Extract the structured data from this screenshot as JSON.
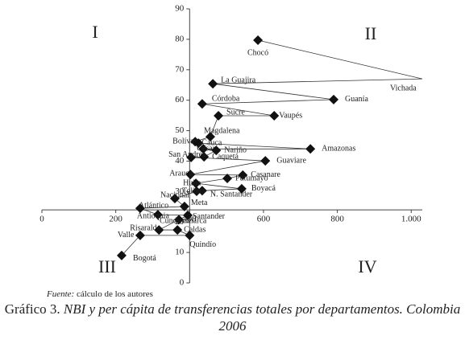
{
  "chart_data": {
    "type": "scatter",
    "connected": true,
    "color": "#000000",
    "xlim": [
      0,
      1030
    ],
    "ylim": [
      0,
      90
    ],
    "xticks": [
      0,
      200,
      400,
      600,
      800,
      {
        "value": 1000,
        "label": "1.000"
      }
    ],
    "yticks": [
      0,
      10,
      20,
      30,
      40,
      50,
      60,
      70,
      80,
      90
    ],
    "x_axis_crosses_y": 24,
    "y_axis_crosses_x": 400,
    "quadrants": [
      "I",
      "II",
      "III",
      "IV"
    ],
    "points": [
      {
        "name": "Chocó",
        "x": 585,
        "y": 79.7
      },
      {
        "name": "Vichada",
        "x": 1030,
        "y": 67
      },
      {
        "name": "La Guajira",
        "x": 463,
        "y": 65.4
      },
      {
        "name": "Guanía",
        "x": 790,
        "y": 60.2
      },
      {
        "name": "Córdoba",
        "x": 434,
        "y": 58.8
      },
      {
        "name": "Vaupés",
        "x": 629,
        "y": 54.9
      },
      {
        "name": "Sucre",
        "x": 478,
        "y": 54.9
      },
      {
        "name": "Magdalena",
        "x": 456,
        "y": 48
      },
      {
        "name": "Bolívar",
        "x": 415,
        "y": 46.4
      },
      {
        "name": "Cauca",
        "x": 424,
        "y": 45.9
      },
      {
        "name": "Amazonas",
        "x": 727,
        "y": 44
      },
      {
        "name": "Cesar",
        "x": 437,
        "y": 44
      },
      {
        "name": "Nariño",
        "x": 472,
        "y": 43.5
      },
      {
        "name": "Caquetá",
        "x": 439,
        "y": 41.4
      },
      {
        "name": "San Andrés",
        "x": 404,
        "y": 41.2
      },
      {
        "name": "Guaviare",
        "x": 605,
        "y": 40.1
      },
      {
        "name": "Arauca",
        "x": 402,
        "y": 35.6
      },
      {
        "name": "Casanare",
        "x": 544,
        "y": 35.4
      },
      {
        "name": "Putumayo",
        "x": 502,
        "y": 34.3
      },
      {
        "name": "Huila",
        "x": 417,
        "y": 32.7
      },
      {
        "name": "Boyacá",
        "x": 541,
        "y": 30.9
      },
      {
        "name": "N. Santander",
        "x": 434,
        "y": 30.3
      },
      {
        "name": "Tolima",
        "x": 419,
        "y": 30.1
      },
      {
        "name": "Nacional",
        "x": 360,
        "y": 27.7
      },
      {
        "name": "Meta",
        "x": 386,
        "y": 25.1
      },
      {
        "name": "Atlántico",
        "x": 266,
        "y": 24.5
      },
      {
        "name": "Antioquia",
        "x": 314,
        "y": 22.4
      },
      {
        "name": "Santander",
        "x": 395,
        "y": 22.2
      },
      {
        "name": "Cundinamarca",
        "x": 371,
        "y": 20.8
      },
      {
        "name": "Risaralda",
        "x": 317,
        "y": 17.4
      },
      {
        "name": "Caldas",
        "x": 367,
        "y": 17.4
      },
      {
        "name": "Quindío",
        "x": 400,
        "y": 15.6
      },
      {
        "name": "Valle",
        "x": 266,
        "y": 15.6
      },
      {
        "name": "Bogotá",
        "x": 216,
        "y": 9
      }
    ],
    "source_label": "Fuente:",
    "source_text": "cálculo de los autores",
    "caption_label": "Gráfico 3.",
    "caption_text": "NBI y per cápita de transferencias totales por departamentos. Colombia 2006"
  }
}
